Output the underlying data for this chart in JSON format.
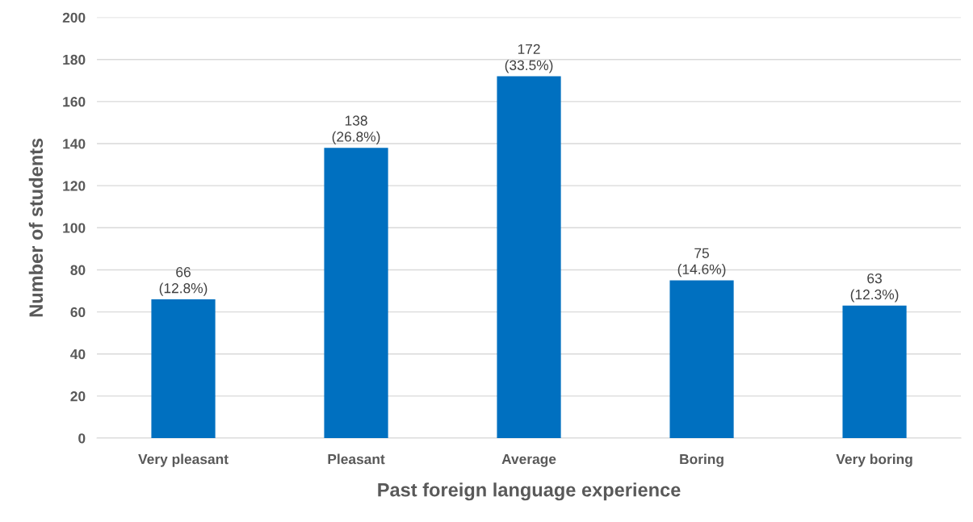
{
  "chart_data": {
    "type": "bar",
    "xlabel": "Past foreign language experience",
    "ylabel": "Number of students",
    "categories": [
      "Very pleasant",
      "Pleasant",
      "Average",
      "Boring",
      "Very boring"
    ],
    "values": [
      66,
      138,
      172,
      75,
      63
    ],
    "color": "#0070c0",
    "value_labels": [
      "66\n(12.8%)",
      "138\n(26.8%)",
      "172\n(33.5%)",
      "75\n(14.6%)",
      "63\n(12.3%)"
    ],
    "ylim": [
      0,
      200
    ],
    "yticks": [
      0,
      20,
      40,
      60,
      80,
      100,
      120,
      140,
      160,
      180,
      200
    ],
    "grid": "y",
    "legend": false
  }
}
